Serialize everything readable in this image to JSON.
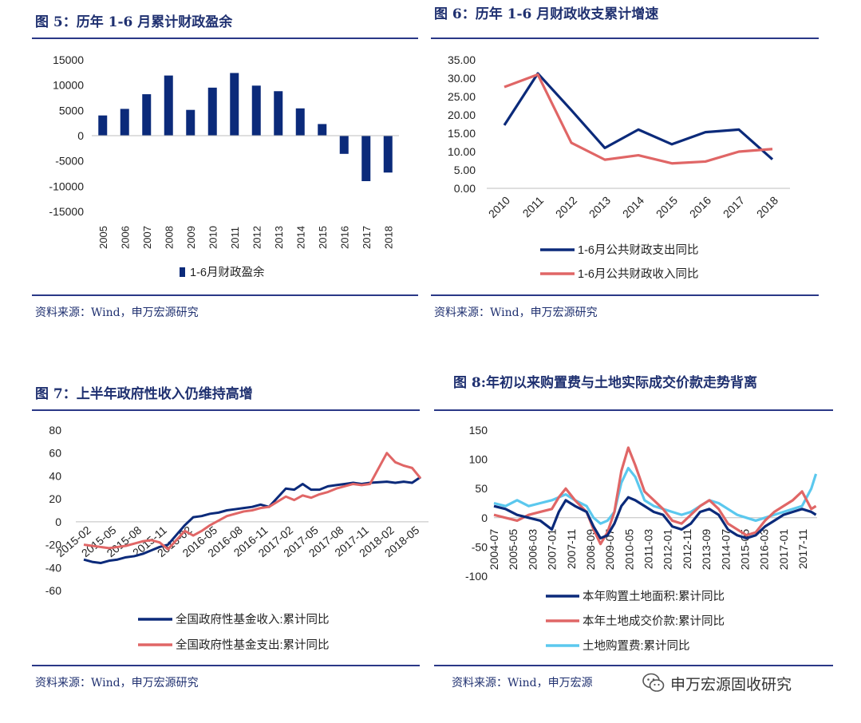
{
  "panels": {
    "p5": {
      "title": "图 5：历年 1-6 月累计财政盈余",
      "source": "资料来源：Wind，申万宏源研究"
    },
    "p6": {
      "title": "图 6：历年 1-6 月财政收支累计增速",
      "source": "资料来源：Wind，申万宏源研究"
    },
    "p7": {
      "title": "图 7：上半年政府性收入仍维持高增",
      "source": "资料来源：Wind，申万宏源研究"
    },
    "p8": {
      "title": "图 8:年初以来购置费与土地实际成交价款走势背离",
      "source": "资料来源：Wind，申万宏源"
    }
  },
  "brand": {
    "text": "申万宏源固收研究",
    "icon": "wechat-icon"
  },
  "colors": {
    "navy": "#1f3a93",
    "darknavy": "#0b2a7a",
    "red": "#e06666",
    "cyan": "#5bc8ee",
    "rule": "#2a3887"
  },
  "chart_data": [
    {
      "id": "p5",
      "type": "bar",
      "categories": [
        "2005",
        "2006",
        "2007",
        "2008",
        "2009",
        "2010",
        "2011",
        "2012",
        "2013",
        "2014",
        "2015",
        "2016",
        "2017",
        "2018"
      ],
      "series": [
        {
          "name": "1-6月财政盈余",
          "values": [
            4000,
            5300,
            8200,
            11900,
            5100,
            9500,
            12400,
            9900,
            8800,
            5400,
            2300,
            -3600,
            -9000,
            -7300
          ]
        }
      ],
      "ylim": [
        -15000,
        15000
      ],
      "yticks": [
        "15000",
        "10000",
        "5000",
        "0",
        "-5000",
        "-10000",
        "-15000"
      ],
      "legend": "bottom"
    },
    {
      "id": "p6",
      "type": "line",
      "categories": [
        "2010",
        "2011",
        "2012",
        "2013",
        "2014",
        "2015",
        "2016",
        "2017",
        "2018"
      ],
      "series": [
        {
          "name": "1-6月公共财政支出同比",
          "values": [
            17.2,
            31.3,
            21.3,
            11.0,
            16.0,
            12.0,
            15.3,
            16.0,
            7.9
          ]
        },
        {
          "name": "1-6月公共财政收入同比",
          "values": [
            27.6,
            31.0,
            12.4,
            7.8,
            9.0,
            6.8,
            7.3,
            10.0,
            10.7
          ]
        }
      ],
      "ylim": [
        0,
        35
      ],
      "yticks": [
        "35.00",
        "30.00",
        "25.00",
        "20.00",
        "15.00",
        "10.00",
        "5.00",
        "0.00"
      ],
      "legend": "bottom"
    },
    {
      "id": "p7",
      "type": "line",
      "categories": [
        "2015-02",
        "2015-05",
        "2015-08",
        "2015-11",
        "2016-02",
        "2016-05",
        "2016-08",
        "2016-11",
        "2017-02",
        "2017-05",
        "2017-08",
        "2017-11",
        "2018-02",
        "2018-05"
      ],
      "series": [
        {
          "name": "全国政府性基金收入:累计同比",
          "x": [
            "2015-02",
            "2015-03",
            "2015-04",
            "2015-05",
            "2015-06",
            "2015-07",
            "2015-08",
            "2015-09",
            "2015-10",
            "2015-11",
            "2015-12",
            "2016-02",
            "2016-03",
            "2016-04",
            "2016-05",
            "2016-06",
            "2016-07",
            "2016-08",
            "2016-09",
            "2016-10",
            "2016-11",
            "2016-12",
            "2017-02",
            "2017-03",
            "2017-04",
            "2017-05",
            "2017-06",
            "2017-07",
            "2017-08",
            "2017-09",
            "2017-10",
            "2017-11",
            "2017-12",
            "2018-02",
            "2018-03",
            "2018-04",
            "2018-05",
            "2018-06"
          ],
          "values": [
            -33,
            -35,
            -36,
            -34,
            -33,
            -31,
            -30,
            -28,
            -25,
            -22,
            -20,
            -3,
            4,
            5,
            7,
            8,
            10,
            11,
            12,
            13,
            15,
            13,
            29,
            28,
            33,
            28,
            28,
            31,
            32,
            33,
            34,
            33,
            34,
            35,
            34,
            35,
            34,
            39
          ]
        },
        {
          "name": "全国政府性基金支出:累计同比",
          "x": [
            "2015-02",
            "2015-03",
            "2015-04",
            "2015-05",
            "2015-06",
            "2015-07",
            "2015-08",
            "2015-09",
            "2015-10",
            "2015-11",
            "2015-12",
            "2016-02",
            "2016-03",
            "2016-04",
            "2016-05",
            "2016-06",
            "2016-07",
            "2016-08",
            "2016-09",
            "2016-10",
            "2016-11",
            "2016-12",
            "2017-02",
            "2017-03",
            "2017-04",
            "2017-05",
            "2017-06",
            "2017-07",
            "2017-08",
            "2017-09",
            "2017-10",
            "2017-11",
            "2017-12",
            "2018-02",
            "2018-03",
            "2018-04",
            "2018-05",
            "2018-06"
          ],
          "values": [
            -20,
            -21,
            -22,
            -23,
            -22,
            -21,
            -19,
            -17,
            -16,
            -18,
            -24,
            -8,
            -12,
            -8,
            -3,
            1,
            5,
            7,
            9,
            10,
            12,
            13,
            22,
            19,
            23,
            21,
            24,
            26,
            29,
            31,
            33,
            32,
            33,
            60,
            52,
            49,
            47,
            38
          ]
        }
      ],
      "ylim": [
        -60,
        80
      ],
      "yticks": [
        "80",
        "60",
        "40",
        "20",
        "0",
        "-20",
        "-40",
        "-60"
      ],
      "legend": "bottom"
    },
    {
      "id": "p8",
      "type": "line",
      "categories": [
        "2004-07",
        "2005-05",
        "2006-03",
        "2007-01",
        "2007-11",
        "2008-09",
        "2009-07",
        "2010-05",
        "2011-03",
        "2012-01",
        "2012-11",
        "2013-09",
        "2014-07",
        "2015-05",
        "2016-03",
        "2017-01",
        "2017-11"
      ],
      "series": [
        {
          "name": "本年购置土地面积:累计同比",
          "x": [
            2004.5,
            2005.0,
            2005.5,
            2006.0,
            2006.5,
            2007.0,
            2007.3,
            2007.6,
            2008.0,
            2008.5,
            2008.8,
            2009.1,
            2009.4,
            2009.7,
            2010.0,
            2010.3,
            2010.6,
            2011.0,
            2011.4,
            2011.8,
            2012.2,
            2012.6,
            2013.0,
            2013.4,
            2013.8,
            2014.2,
            2014.6,
            2015.0,
            2015.4,
            2015.8,
            2016.2,
            2016.6,
            2017.0,
            2017.4,
            2017.8,
            2018.2,
            2018.4
          ],
          "values": [
            20,
            15,
            5,
            0,
            -5,
            -20,
            10,
            30,
            20,
            10,
            -15,
            -35,
            -30,
            -10,
            20,
            35,
            30,
            20,
            10,
            5,
            -15,
            -20,
            -10,
            10,
            15,
            5,
            -20,
            -30,
            -35,
            -30,
            -15,
            -5,
            5,
            10,
            15,
            10,
            5
          ]
        },
        {
          "name": "本年土地成交价款:累计同比",
          "x": [
            2004.5,
            2005.0,
            2005.5,
            2006.0,
            2006.5,
            2007.0,
            2007.3,
            2007.6,
            2008.0,
            2008.5,
            2008.8,
            2009.1,
            2009.4,
            2009.7,
            2010.0,
            2010.3,
            2010.6,
            2011.0,
            2011.4,
            2011.8,
            2012.2,
            2012.6,
            2013.0,
            2013.4,
            2013.8,
            2014.2,
            2014.6,
            2015.0,
            2015.4,
            2015.8,
            2016.2,
            2016.6,
            2017.0,
            2017.4,
            2017.8,
            2018.2,
            2018.4
          ],
          "values": [
            5,
            0,
            -5,
            5,
            10,
            15,
            35,
            50,
            30,
            10,
            -20,
            -45,
            -25,
            10,
            80,
            120,
            90,
            45,
            30,
            15,
            -5,
            -10,
            5,
            20,
            30,
            15,
            -10,
            -20,
            -30,
            -25,
            -5,
            10,
            20,
            30,
            45,
            15,
            20
          ]
        },
        {
          "name": "土地购置费:累计同比",
          "x": [
            2004.5,
            2005.0,
            2005.5,
            2006.0,
            2006.5,
            2007.0,
            2007.3,
            2007.6,
            2008.0,
            2008.5,
            2008.8,
            2009.1,
            2009.4,
            2009.7,
            2010.0,
            2010.3,
            2010.6,
            2011.0,
            2011.4,
            2011.8,
            2012.2,
            2012.6,
            2013.0,
            2013.4,
            2013.8,
            2014.2,
            2014.6,
            2015.0,
            2015.4,
            2015.8,
            2016.2,
            2016.6,
            2017.0,
            2017.4,
            2017.8,
            2018.2,
            2018.4
          ],
          "values": [
            25,
            20,
            30,
            20,
            25,
            30,
            35,
            40,
            30,
            20,
            0,
            -10,
            -5,
            10,
            60,
            85,
            70,
            30,
            20,
            15,
            10,
            5,
            10,
            20,
            30,
            25,
            15,
            5,
            0,
            -5,
            0,
            5,
            10,
            15,
            20,
            50,
            75
          ]
        }
      ],
      "xlim": [
        2004.5,
        2018.45
      ],
      "ylim": [
        -100,
        150
      ],
      "yticks": [
        "150",
        "100",
        "50",
        "0",
        "-50",
        "-100"
      ],
      "legend": "bottom"
    }
  ]
}
